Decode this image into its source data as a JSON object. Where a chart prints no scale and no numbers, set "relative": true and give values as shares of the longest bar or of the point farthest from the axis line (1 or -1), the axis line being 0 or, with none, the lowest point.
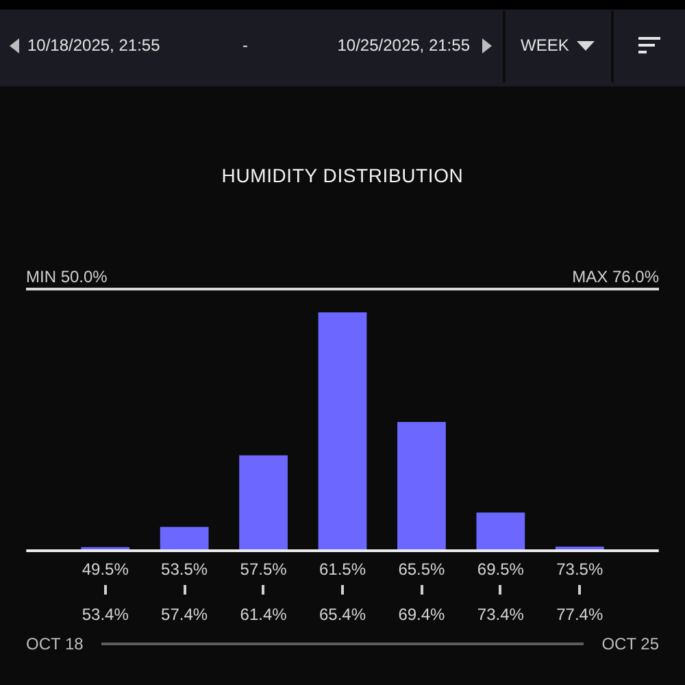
{
  "chart_data": {
    "type": "bar",
    "title": "HUMIDITY DISTRIBUTION",
    "categories": [
      "49.5%\n53.4%",
      "53.5%\n57.4%",
      "57.5%\n61.4%",
      "61.5%\n65.4%",
      "65.5%\n69.4%",
      "69.5%\n73.4%",
      "73.5%\n77.4%"
    ],
    "values": [
      0.015,
      0.1,
      0.4,
      1,
      0.54,
      0.16,
      0.017
    ],
    "color": "#6c68ff",
    "relative": true,
    "annotations": [
      "10/18/2025, 21:55",
      "-",
      "10/25/2025, 21:55",
      "WEEK",
      "MIN 50.0%",
      "MAX 76.0%",
      "OCT 18",
      "OCT 25"
    ]
  }
}
